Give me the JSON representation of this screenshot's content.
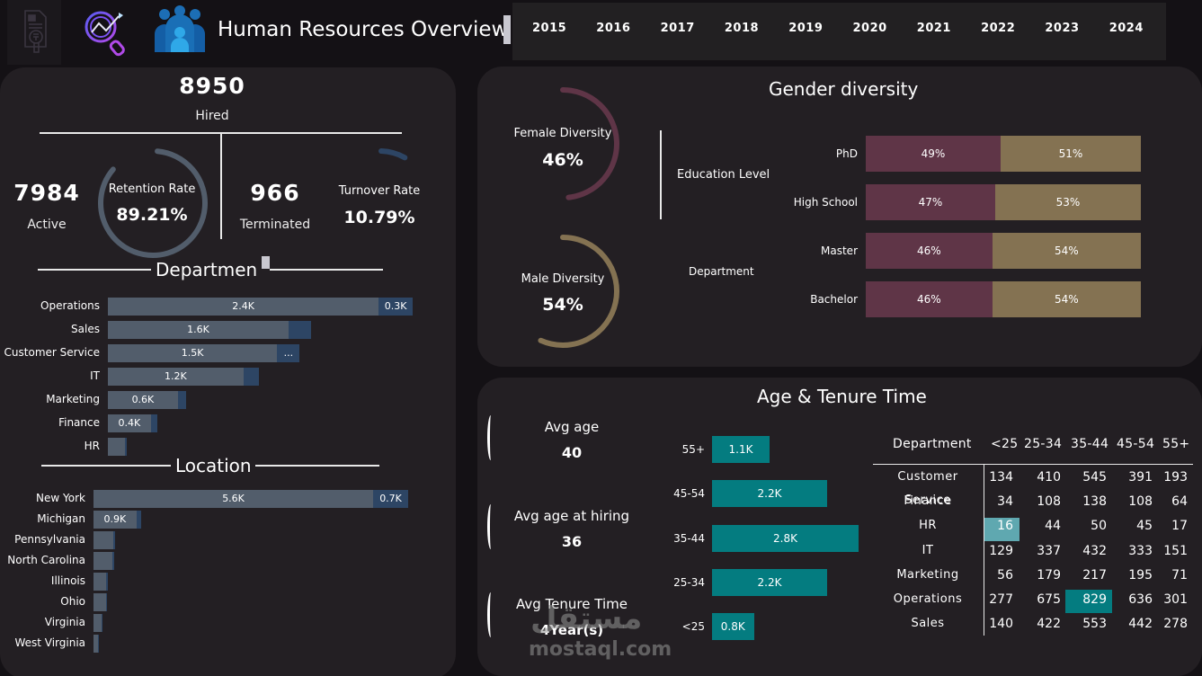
{
  "header": {
    "title": "Human Resources Overview",
    "icons": [
      "document-finance-icon",
      "analytics-search-icon",
      "people-group-icon"
    ],
    "years": [
      "2015",
      "2016",
      "2017",
      "2018",
      "2019",
      "2020",
      "2021",
      "2022",
      "2023",
      "2024"
    ]
  },
  "kpis": {
    "hired": {
      "value": "8950",
      "label": "Hired"
    },
    "active": {
      "value": "7984",
      "label": "Active"
    },
    "retention": {
      "label": "Retention Rate",
      "value": "89.21%",
      "fraction": 0.8921
    },
    "terminated": {
      "value": "966",
      "label": "Terminated"
    },
    "turnover": {
      "label": "Turnover Rate",
      "value": "10.79%",
      "fraction": 0.1079
    }
  },
  "colors": {
    "panel": "#231f23",
    "background": "#141115",
    "bar_primary": "#525d6b",
    "bar_secondary": "#2d4564",
    "female": "#5f3547",
    "male": "#847252",
    "teal": "#047c80",
    "teal_light": "#5fa8b0"
  },
  "department_chart": {
    "title": "Departmen",
    "rows": [
      {
        "label": "Operations",
        "active": 2.4,
        "terminated": 0.3,
        "active_label": "2.4K",
        "terminated_label": "0.3K"
      },
      {
        "label": "Sales",
        "active": 1.6,
        "terminated": 0.2,
        "active_label": "1.6K",
        "terminated_label": ""
      },
      {
        "label": "Customer Service",
        "active": 1.5,
        "terminated": 0.2,
        "active_label": "1.5K",
        "terminated_label": "..."
      },
      {
        "label": "IT",
        "active": 1.2,
        "terminated": 0.14,
        "active_label": "1.2K",
        "terminated_label": ""
      },
      {
        "label": "Marketing",
        "active": 0.62,
        "terminated": 0.07,
        "active_label": "0.6K",
        "terminated_label": ""
      },
      {
        "label": "Finance",
        "active": 0.38,
        "terminated": 0.06,
        "active_label": "0.4K",
        "terminated_label": ""
      },
      {
        "label": "HR",
        "active": 0.15,
        "terminated": 0.02,
        "active_label": "",
        "terminated_label": ""
      }
    ]
  },
  "location_chart": {
    "title": "Location",
    "rows": [
      {
        "label": "New York",
        "active": 5.6,
        "terminated": 0.7,
        "active_label": "5.6K",
        "terminated_label": "0.7K"
      },
      {
        "label": "Michigan",
        "active": 0.86,
        "terminated": 0.1,
        "active_label": "0.9K",
        "terminated_label": ""
      },
      {
        "label": "Pennsylvania",
        "active": 0.4,
        "terminated": 0.04,
        "active_label": "",
        "terminated_label": ""
      },
      {
        "label": "North Carolina",
        "active": 0.38,
        "terminated": 0.04,
        "active_label": "",
        "terminated_label": ""
      },
      {
        "label": "Illinois",
        "active": 0.25,
        "terminated": 0.03,
        "active_label": "",
        "terminated_label": ""
      },
      {
        "label": "Ohio",
        "active": 0.25,
        "terminated": 0.02,
        "active_label": "",
        "terminated_label": ""
      },
      {
        "label": "Virginia",
        "active": 0.16,
        "terminated": 0.02,
        "active_label": "",
        "terminated_label": ""
      },
      {
        "label": "West Virginia",
        "active": 0.09,
        "terminated": 0.01,
        "active_label": "",
        "terminated_label": ""
      }
    ]
  },
  "gender": {
    "title": "Gender diversity",
    "female": {
      "label": "Female Diversity",
      "value": "46%",
      "fraction": 0.46
    },
    "male": {
      "label": "Male Diversity",
      "value": "54%",
      "fraction": 0.54
    },
    "filters": [
      "Education Level",
      "Department"
    ],
    "rows": [
      {
        "label": "PhD",
        "female": 49,
        "male": 51,
        "female_label": "49%",
        "male_label": "51%"
      },
      {
        "label": "High School",
        "female": 47,
        "male": 53,
        "female_label": "47%",
        "male_label": "53%"
      },
      {
        "label": "Master",
        "female": 46,
        "male": 54,
        "female_label": "46%",
        "male_label": "54%"
      },
      {
        "label": "Bachelor",
        "female": 46,
        "male": 54,
        "female_label": "46%",
        "male_label": "54%"
      }
    ]
  },
  "age": {
    "title": "Age & Tenure Time",
    "avg_age": {
      "label": "Avg age",
      "value": "40"
    },
    "avg_age_hiring": {
      "label": "Avg age at hiring",
      "value": "36"
    },
    "avg_tenure": {
      "label": "Avg Tenure Time",
      "value": "4Year(s)"
    },
    "groups": [
      {
        "label": "55+",
        "value": 1.1,
        "value_label": "1.1K"
      },
      {
        "label": "45-54",
        "value": 2.2,
        "value_label": "2.2K"
      },
      {
        "label": "35-44",
        "value": 2.8,
        "value_label": "2.8K"
      },
      {
        "label": "25-34",
        "value": 2.2,
        "value_label": "2.2K"
      },
      {
        "label": "<25",
        "value": 0.8,
        "value_label": "0.8K"
      }
    ],
    "table": {
      "headers": [
        "Department",
        "<25",
        "25-34",
        "35-44",
        "45-54",
        "55+"
      ],
      "rows": [
        {
          "dept": "Customer Service",
          "values": [
            "134",
            "410",
            "545",
            "391",
            "193"
          ]
        },
        {
          "dept": "Finance",
          "values": [
            "34",
            "108",
            "138",
            "108",
            "64"
          ]
        },
        {
          "dept": "HR",
          "values": [
            "16",
            "44",
            "50",
            "45",
            "17"
          ]
        },
        {
          "dept": "IT",
          "values": [
            "129",
            "337",
            "432",
            "333",
            "151"
          ]
        },
        {
          "dept": "Marketing",
          "values": [
            "56",
            "179",
            "217",
            "195",
            "71"
          ]
        },
        {
          "dept": "Operations",
          "values": [
            "277",
            "675",
            "829",
            "636",
            "301"
          ]
        },
        {
          "dept": "Sales",
          "values": [
            "140",
            "422",
            "553",
            "442",
            "278"
          ]
        }
      ],
      "highlight_min": {
        "row": 2,
        "col": 0
      },
      "highlight_max": {
        "row": 5,
        "col": 2
      }
    }
  },
  "watermark": {
    "arabic": "مستقل",
    "latin": "mostaql.com"
  }
}
